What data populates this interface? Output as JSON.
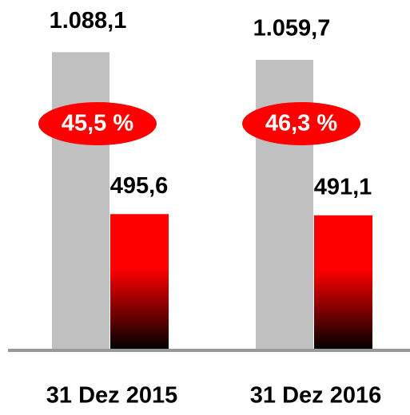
{
  "chart_data": {
    "type": "bar",
    "categories": [
      "31 Dez 2015",
      "31 Dez 2016"
    ],
    "series": [
      {
        "color": "#c0c0c0",
        "values": [
          1088.1,
          1059.7
        ],
        "value_labels": [
          "1.088,1",
          "1.059,7"
        ]
      },
      {
        "color": "#ff0000",
        "values": [
          495.6,
          491.1
        ],
        "value_labels": [
          "495,6",
          "491,1"
        ]
      }
    ],
    "annotations": [
      "45,5 %",
      "46,3 %"
    ],
    "ylim": [
      0,
      1200
    ]
  }
}
